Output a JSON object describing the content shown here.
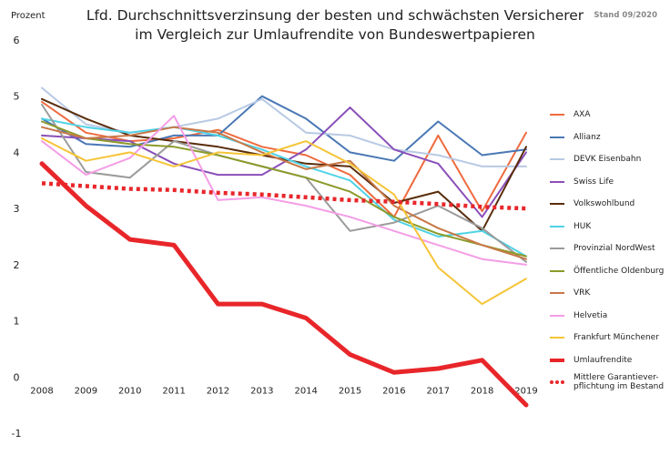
{
  "header": {
    "title_line1": "Lfd. Durchschnittsverzinsung der besten und schwächsten Versicherer",
    "title_line2": "im Vergleich zur Umlaufrendite von Bundeswertpapieren",
    "y_unit_label": "Prozent",
    "stand": "Stand 09/2020"
  },
  "chart_data": {
    "type": "line",
    "title": "Lfd. Durchschnittsverzinsung der besten und schwächsten Versicherer im Vergleich zur Umlaufrendite von Bundeswertpapieren",
    "ylabel": "Prozent",
    "xlabel": "",
    "x": [
      "2008",
      "2009",
      "2010",
      "2011",
      "2012",
      "2013",
      "2014",
      "2015",
      "2016",
      "2017",
      "2018",
      "2019"
    ],
    "ylim": [
      -1,
      6
    ],
    "yticks": [
      "-1",
      "0",
      "1",
      "2",
      "3",
      "4",
      "5",
      "6"
    ],
    "grid": false,
    "legend_position": "right",
    "series": [
      {
        "name": "AXA",
        "color": "#ee6b3f",
        "width": 2,
        "style": "solid",
        "values": [
          4.9,
          4.35,
          4.2,
          4.25,
          4.4,
          4.1,
          3.95,
          3.6,
          2.85,
          4.3,
          2.95,
          4.35
        ]
      },
      {
        "name": "Allianz",
        "color": "#4a78b5",
        "width": 2,
        "style": "solid",
        "values": [
          4.6,
          4.15,
          4.1,
          4.3,
          4.3,
          5.0,
          4.6,
          4.0,
          3.85,
          4.55,
          3.95,
          4.05
        ]
      },
      {
        "name": "DEVK Eisenbahn",
        "color": "#b8c9e4",
        "width": 2,
        "style": "solid",
        "values": [
          5.15,
          4.5,
          4.35,
          4.45,
          4.6,
          4.95,
          4.35,
          4.3,
          4.05,
          3.95,
          3.75,
          3.75
        ]
      },
      {
        "name": "Swiss Life",
        "color": "#8a4fb8",
        "width": 2,
        "style": "solid",
        "values": [
          4.3,
          4.25,
          4.2,
          3.8,
          3.6,
          3.6,
          4.05,
          4.8,
          4.05,
          3.8,
          2.85,
          4.0
        ]
      },
      {
        "name": "Volkswohlbund",
        "color": "#5a2d0c",
        "width": 2,
        "style": "solid",
        "values": [
          4.95,
          4.6,
          4.3,
          4.2,
          4.1,
          3.95,
          3.8,
          3.75,
          3.1,
          3.3,
          2.6,
          4.1
        ]
      },
      {
        "name": "HUK",
        "color": "#4fd3e6",
        "width": 2,
        "style": "solid",
        "values": [
          4.6,
          4.45,
          4.35,
          4.45,
          4.3,
          4.05,
          3.75,
          3.5,
          2.8,
          2.5,
          2.6,
          2.15
        ]
      },
      {
        "name": "Provinzial NordWest",
        "color": "#9b9b9b",
        "width": 2,
        "style": "solid",
        "values": [
          4.85,
          3.65,
          3.55,
          4.2,
          3.95,
          3.75,
          3.55,
          2.6,
          2.75,
          3.05,
          2.65,
          2.05
        ]
      },
      {
        "name": "Öffentliche Oldenburg",
        "color": "#8c9a2a",
        "width": 2,
        "style": "solid",
        "values": [
          4.55,
          4.25,
          4.15,
          4.1,
          3.95,
          3.75,
          3.55,
          3.3,
          2.85,
          2.55,
          2.35,
          2.15
        ]
      },
      {
        "name": "VRK",
        "color": "#c87848",
        "width": 2,
        "style": "solid",
        "values": [
          4.45,
          4.25,
          4.3,
          4.45,
          4.35,
          4.0,
          3.7,
          3.85,
          3.05,
          2.65,
          2.35,
          2.1
        ]
      },
      {
        "name": "Helvetia",
        "color": "#f49de6",
        "width": 2,
        "style": "solid",
        "values": [
          4.2,
          3.6,
          3.9,
          4.65,
          3.15,
          3.2,
          3.05,
          2.85,
          2.6,
          2.35,
          2.1,
          2.0
        ]
      },
      {
        "name": "Frankfurt Münchener",
        "color": "#f5c437",
        "width": 2,
        "style": "solid",
        "values": [
          4.25,
          3.85,
          4.0,
          3.75,
          4.0,
          3.95,
          4.2,
          3.8,
          3.25,
          1.95,
          1.3,
          1.75
        ]
      },
      {
        "name": "Umlaufrendite",
        "color": "#e8262a",
        "width": 5,
        "style": "solid",
        "values": [
          3.8,
          3.05,
          2.45,
          2.35,
          1.3,
          1.3,
          1.05,
          0.4,
          0.08,
          0.15,
          0.3,
          -0.5
        ]
      },
      {
        "name": "Mittlere Garantiever-\npflichtung im Bestand",
        "color": "#e8262a",
        "width": 4.5,
        "style": "dotted",
        "values": [
          3.45,
          3.4,
          3.35,
          3.33,
          3.28,
          3.25,
          3.2,
          3.15,
          3.12,
          3.08,
          3.03,
          3.0
        ]
      }
    ]
  }
}
